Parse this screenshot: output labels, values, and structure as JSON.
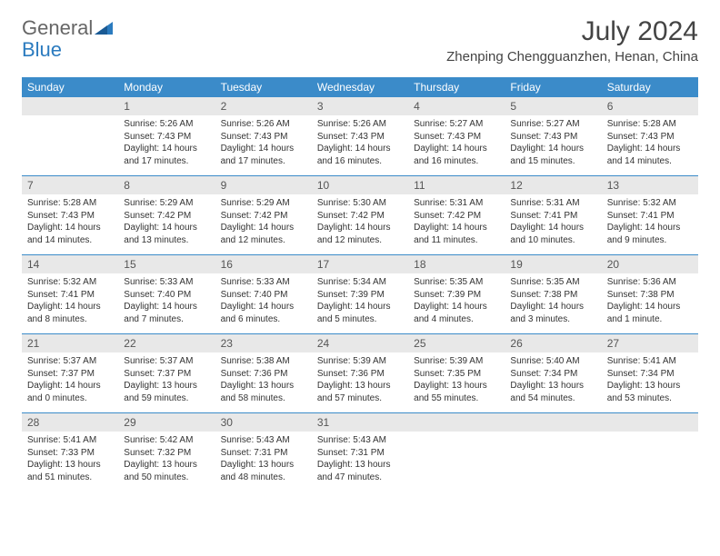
{
  "logo": {
    "text1": "General",
    "text2": "Blue"
  },
  "title": "July 2024",
  "location": "Zhenping Chengguanzhen, Henan, China",
  "header_bg": "#3b8bc9",
  "daynum_bg": "#e8e8e8",
  "weekdays": [
    "Sunday",
    "Monday",
    "Tuesday",
    "Wednesday",
    "Thursday",
    "Friday",
    "Saturday"
  ],
  "weeks": [
    [
      {
        "num": "",
        "lines": []
      },
      {
        "num": "1",
        "lines": [
          "Sunrise: 5:26 AM",
          "Sunset: 7:43 PM",
          "Daylight: 14 hours and 17 minutes."
        ]
      },
      {
        "num": "2",
        "lines": [
          "Sunrise: 5:26 AM",
          "Sunset: 7:43 PM",
          "Daylight: 14 hours and 17 minutes."
        ]
      },
      {
        "num": "3",
        "lines": [
          "Sunrise: 5:26 AM",
          "Sunset: 7:43 PM",
          "Daylight: 14 hours and 16 minutes."
        ]
      },
      {
        "num": "4",
        "lines": [
          "Sunrise: 5:27 AM",
          "Sunset: 7:43 PM",
          "Daylight: 14 hours and 16 minutes."
        ]
      },
      {
        "num": "5",
        "lines": [
          "Sunrise: 5:27 AM",
          "Sunset: 7:43 PM",
          "Daylight: 14 hours and 15 minutes."
        ]
      },
      {
        "num": "6",
        "lines": [
          "Sunrise: 5:28 AM",
          "Sunset: 7:43 PM",
          "Daylight: 14 hours and 14 minutes."
        ]
      }
    ],
    [
      {
        "num": "7",
        "lines": [
          "Sunrise: 5:28 AM",
          "Sunset: 7:43 PM",
          "Daylight: 14 hours and 14 minutes."
        ]
      },
      {
        "num": "8",
        "lines": [
          "Sunrise: 5:29 AM",
          "Sunset: 7:42 PM",
          "Daylight: 14 hours and 13 minutes."
        ]
      },
      {
        "num": "9",
        "lines": [
          "Sunrise: 5:29 AM",
          "Sunset: 7:42 PM",
          "Daylight: 14 hours and 12 minutes."
        ]
      },
      {
        "num": "10",
        "lines": [
          "Sunrise: 5:30 AM",
          "Sunset: 7:42 PM",
          "Daylight: 14 hours and 12 minutes."
        ]
      },
      {
        "num": "11",
        "lines": [
          "Sunrise: 5:31 AM",
          "Sunset: 7:42 PM",
          "Daylight: 14 hours and 11 minutes."
        ]
      },
      {
        "num": "12",
        "lines": [
          "Sunrise: 5:31 AM",
          "Sunset: 7:41 PM",
          "Daylight: 14 hours and 10 minutes."
        ]
      },
      {
        "num": "13",
        "lines": [
          "Sunrise: 5:32 AM",
          "Sunset: 7:41 PM",
          "Daylight: 14 hours and 9 minutes."
        ]
      }
    ],
    [
      {
        "num": "14",
        "lines": [
          "Sunrise: 5:32 AM",
          "Sunset: 7:41 PM",
          "Daylight: 14 hours and 8 minutes."
        ]
      },
      {
        "num": "15",
        "lines": [
          "Sunrise: 5:33 AM",
          "Sunset: 7:40 PM",
          "Daylight: 14 hours and 7 minutes."
        ]
      },
      {
        "num": "16",
        "lines": [
          "Sunrise: 5:33 AM",
          "Sunset: 7:40 PM",
          "Daylight: 14 hours and 6 minutes."
        ]
      },
      {
        "num": "17",
        "lines": [
          "Sunrise: 5:34 AM",
          "Sunset: 7:39 PM",
          "Daylight: 14 hours and 5 minutes."
        ]
      },
      {
        "num": "18",
        "lines": [
          "Sunrise: 5:35 AM",
          "Sunset: 7:39 PM",
          "Daylight: 14 hours and 4 minutes."
        ]
      },
      {
        "num": "19",
        "lines": [
          "Sunrise: 5:35 AM",
          "Sunset: 7:38 PM",
          "Daylight: 14 hours and 3 minutes."
        ]
      },
      {
        "num": "20",
        "lines": [
          "Sunrise: 5:36 AM",
          "Sunset: 7:38 PM",
          "Daylight: 14 hours and 1 minute."
        ]
      }
    ],
    [
      {
        "num": "21",
        "lines": [
          "Sunrise: 5:37 AM",
          "Sunset: 7:37 PM",
          "Daylight: 14 hours and 0 minutes."
        ]
      },
      {
        "num": "22",
        "lines": [
          "Sunrise: 5:37 AM",
          "Sunset: 7:37 PM",
          "Daylight: 13 hours and 59 minutes."
        ]
      },
      {
        "num": "23",
        "lines": [
          "Sunrise: 5:38 AM",
          "Sunset: 7:36 PM",
          "Daylight: 13 hours and 58 minutes."
        ]
      },
      {
        "num": "24",
        "lines": [
          "Sunrise: 5:39 AM",
          "Sunset: 7:36 PM",
          "Daylight: 13 hours and 57 minutes."
        ]
      },
      {
        "num": "25",
        "lines": [
          "Sunrise: 5:39 AM",
          "Sunset: 7:35 PM",
          "Daylight: 13 hours and 55 minutes."
        ]
      },
      {
        "num": "26",
        "lines": [
          "Sunrise: 5:40 AM",
          "Sunset: 7:34 PM",
          "Daylight: 13 hours and 54 minutes."
        ]
      },
      {
        "num": "27",
        "lines": [
          "Sunrise: 5:41 AM",
          "Sunset: 7:34 PM",
          "Daylight: 13 hours and 53 minutes."
        ]
      }
    ],
    [
      {
        "num": "28",
        "lines": [
          "Sunrise: 5:41 AM",
          "Sunset: 7:33 PM",
          "Daylight: 13 hours and 51 minutes."
        ]
      },
      {
        "num": "29",
        "lines": [
          "Sunrise: 5:42 AM",
          "Sunset: 7:32 PM",
          "Daylight: 13 hours and 50 minutes."
        ]
      },
      {
        "num": "30",
        "lines": [
          "Sunrise: 5:43 AM",
          "Sunset: 7:31 PM",
          "Daylight: 13 hours and 48 minutes."
        ]
      },
      {
        "num": "31",
        "lines": [
          "Sunrise: 5:43 AM",
          "Sunset: 7:31 PM",
          "Daylight: 13 hours and 47 minutes."
        ]
      },
      {
        "num": "",
        "lines": []
      },
      {
        "num": "",
        "lines": []
      },
      {
        "num": "",
        "lines": []
      }
    ]
  ]
}
